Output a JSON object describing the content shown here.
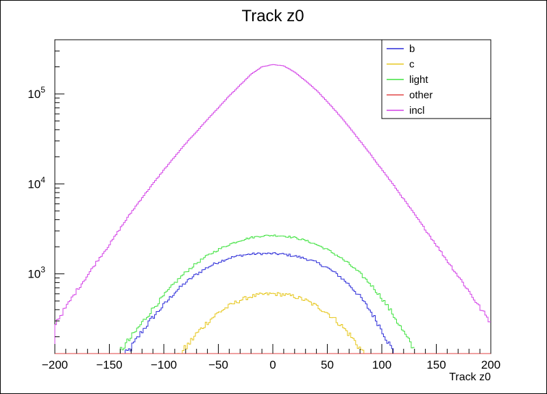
{
  "chart_data": {
    "type": "line",
    "title": "Track z0",
    "xlabel": "Track z0",
    "ylabel": "",
    "xlim": [
      -200,
      200
    ],
    "ylim": [
      130,
      400000
    ],
    "yscale": "log",
    "x_ticks": [
      -200,
      -150,
      -100,
      -50,
      0,
      50,
      100,
      150,
      200
    ],
    "x_tick_labels": [
      "−200",
      "−150",
      "−100",
      "−50",
      "0",
      "50",
      "100",
      "150",
      "200"
    ],
    "y_ticks": [
      {
        "value": 1000,
        "base": "10",
        "exp": "3"
      },
      {
        "value": 10000,
        "base": "10",
        "exp": "4"
      },
      {
        "value": 100000,
        "base": "10",
        "exp": "5"
      }
    ],
    "grid": false,
    "legend_position": "top-right",
    "x": [
      -200,
      -190,
      -180,
      -170,
      -160,
      -150,
      -140,
      -130,
      -120,
      -110,
      -100,
      -90,
      -80,
      -70,
      -60,
      -50,
      -40,
      -30,
      -20,
      -10,
      0,
      10,
      20,
      30,
      40,
      50,
      60,
      70,
      80,
      90,
      100,
      110,
      120,
      130,
      140,
      150,
      160,
      170,
      180,
      190,
      200
    ],
    "series": [
      {
        "name": "b",
        "color": "#2a2ad8",
        "values": [
          null,
          null,
          null,
          null,
          null,
          null,
          110,
          150,
          230,
          330,
          450,
          620,
          800,
          990,
          1180,
          1350,
          1500,
          1600,
          1660,
          1680,
          1680,
          1650,
          1580,
          1480,
          1340,
          1170,
          970,
          760,
          560,
          380,
          240,
          140,
          95,
          null,
          null,
          null,
          null,
          null,
          null,
          null,
          null
        ]
      },
      {
        "name": "c",
        "color": "#e6c619",
        "values": [
          null,
          null,
          null,
          null,
          null,
          null,
          null,
          null,
          null,
          null,
          null,
          105,
          150,
          215,
          290,
          370,
          440,
          510,
          560,
          590,
          600,
          590,
          560,
          510,
          440,
          370,
          290,
          215,
          150,
          100,
          null,
          null,
          null,
          null,
          null,
          null,
          null,
          null,
          null,
          null,
          null
        ]
      },
      {
        "name": "light",
        "color": "#3ee23e",
        "values": [
          null,
          null,
          null,
          null,
          null,
          null,
          140,
          195,
          285,
          410,
          570,
          790,
          1040,
          1310,
          1590,
          1860,
          2120,
          2350,
          2530,
          2640,
          2680,
          2640,
          2530,
          2350,
          2120,
          1860,
          1580,
          1290,
          1010,
          760,
          540,
          360,
          225,
          140,
          null,
          null,
          null,
          null,
          null,
          null,
          null
        ]
      },
      {
        "name": "other",
        "color": "#e04040",
        "values": [
          130,
          130,
          130,
          130,
          130,
          130,
          130,
          130,
          130,
          130,
          130,
          130,
          130,
          130,
          130,
          130,
          130,
          130,
          130,
          130,
          130,
          130,
          130,
          130,
          130,
          130,
          130,
          130,
          130,
          130,
          130,
          130,
          130,
          130,
          130,
          130,
          130,
          130,
          130,
          130,
          130
        ]
      },
      {
        "name": "incl",
        "color": "#d23ee6",
        "values": [
          280,
          420,
          650,
          960,
          1450,
          2100,
          3200,
          4800,
          7000,
          10000,
          14300,
          20000,
          28000,
          38000,
          52000,
          70000,
          95000,
          125000,
          165000,
          200000,
          212000,
          205000,
          175000,
          140000,
          110000,
          82000,
          60000,
          43000,
          30000,
          21000,
          14500,
          10000,
          6800,
          4600,
          3100,
          2100,
          1400,
          950,
          640,
          420,
          290
        ]
      }
    ]
  }
}
